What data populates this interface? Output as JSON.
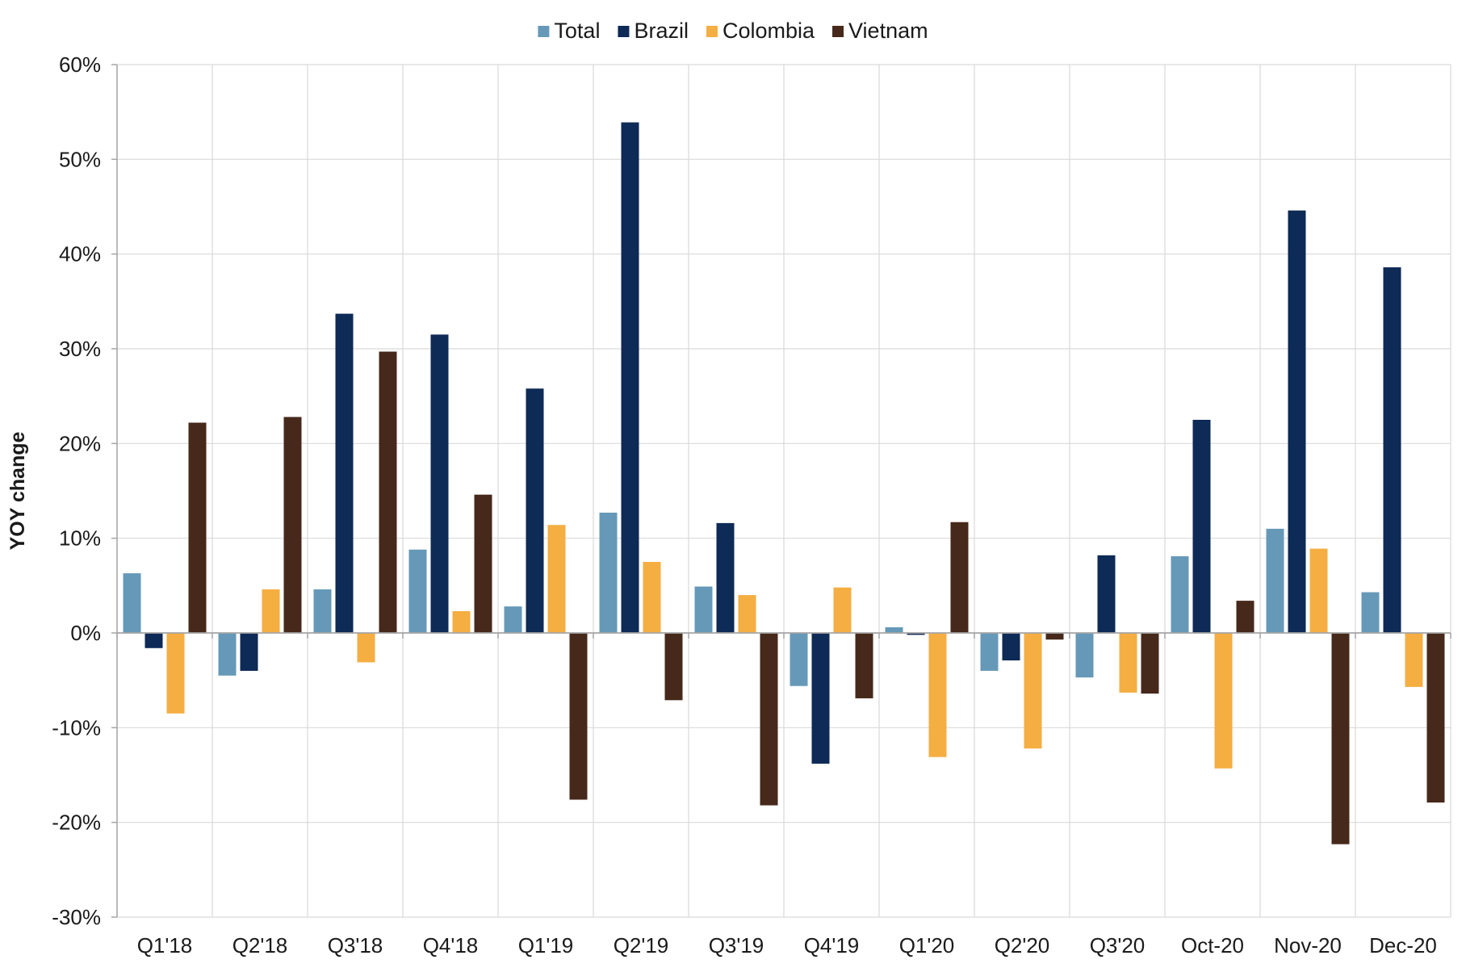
{
  "chart_data": {
    "type": "bar",
    "title": "",
    "xlabel": "",
    "ylabel": "YOY change",
    "ylim": [
      -30,
      60
    ],
    "y_tick_step": 10,
    "y_tick_format": "percent",
    "grid": true,
    "legend_position": "top-center",
    "categories": [
      "Q1'18",
      "Q2'18",
      "Q3'18",
      "Q4'18",
      "Q1'19",
      "Q2'19",
      "Q3'19",
      "Q4'19",
      "Q1'20",
      "Q2'20",
      "Q3'20",
      "Oct-20",
      "Nov-20",
      "Dec-20"
    ],
    "series": [
      {
        "name": "Total",
        "color": "#6699B8",
        "values": [
          6.3,
          -4.5,
          4.6,
          8.8,
          2.8,
          12.7,
          4.9,
          -5.6,
          0.6,
          -4.0,
          -4.7,
          8.1,
          11.0,
          4.3
        ]
      },
      {
        "name": "Brazil",
        "color": "#0E2A56",
        "values": [
          -1.6,
          -4.0,
          33.7,
          31.5,
          25.8,
          53.9,
          11.6,
          -13.8,
          -0.2,
          -2.9,
          8.2,
          22.5,
          44.6,
          38.6
        ]
      },
      {
        "name": "Colombia",
        "color": "#F4AE42",
        "values": [
          -8.5,
          4.6,
          -3.1,
          2.3,
          11.4,
          7.5,
          4.0,
          4.8,
          -13.1,
          -12.2,
          -6.3,
          -14.3,
          8.9,
          -5.7
        ]
      },
      {
        "name": "Vietnam",
        "color": "#46291B",
        "values": [
          22.2,
          22.8,
          29.7,
          14.6,
          -17.6,
          -7.1,
          -18.2,
          -6.9,
          11.7,
          -0.7,
          -6.4,
          3.4,
          -22.3,
          -17.9
        ]
      }
    ]
  }
}
